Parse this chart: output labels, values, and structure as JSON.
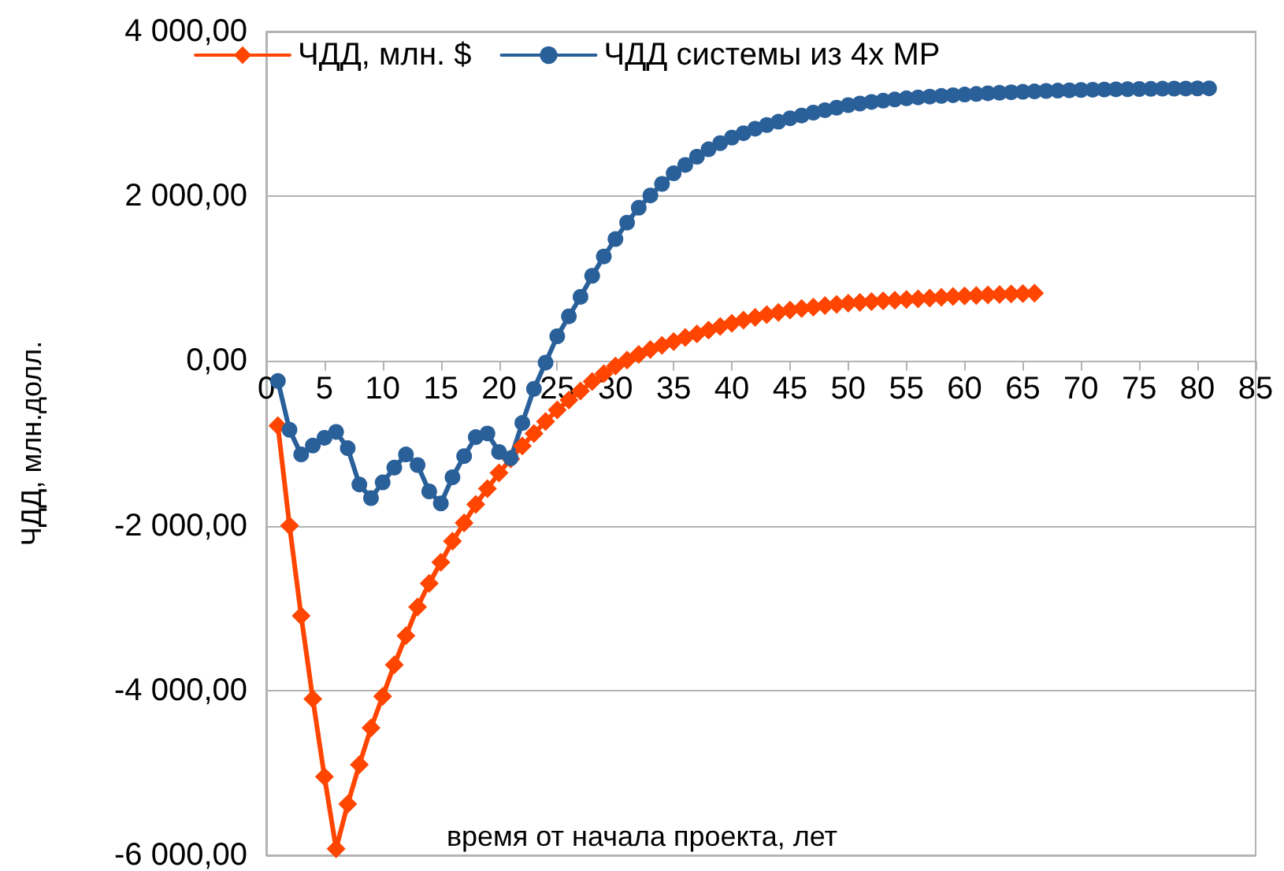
{
  "chart_data": {
    "type": "line",
    "xlabel": "время от начала проекта, лет",
    "ylabel": "ЧДД, млн.долл.",
    "xlim": [
      0,
      85
    ],
    "xticks": [
      0,
      5,
      10,
      15,
      20,
      25,
      30,
      35,
      40,
      45,
      50,
      55,
      60,
      65,
      70,
      75,
      80,
      85
    ],
    "ylim": [
      -6000,
      4000
    ],
    "yticks": [
      {
        "value": -6000,
        "label": "-6 000,00"
      },
      {
        "value": -4000,
        "label": "-4 000,00"
      },
      {
        "value": -2000,
        "label": "-2 000,00"
      },
      {
        "value": 0,
        "label": "0,00"
      },
      {
        "value": 2000,
        "label": "2 000,00"
      },
      {
        "value": 4000,
        "label": "4 000,00"
      }
    ],
    "grid": "y",
    "legend": "top left",
    "line_style": "solid",
    "series": [
      {
        "name": "ЧДД, млн. $",
        "color": "#ff4500",
        "marker": "diamond",
        "x": [
          1,
          2,
          3,
          4,
          5,
          6,
          7,
          8,
          9,
          10,
          11,
          12,
          13,
          14,
          15,
          16,
          17,
          18,
          19,
          20,
          21,
          22,
          23,
          24,
          25,
          26,
          27,
          28,
          29,
          30,
          31,
          32,
          33,
          34,
          35,
          36,
          37,
          38,
          39,
          40,
          41,
          42,
          43,
          44,
          45,
          46,
          47,
          48,
          49,
          50,
          51,
          52,
          53,
          54,
          55,
          56,
          57,
          58,
          59,
          60,
          61,
          62,
          63,
          64,
          65,
          66
        ],
        "values": [
          -785,
          -2000,
          -3094,
          -4102,
          -5047,
          -5920,
          -5378,
          -4900,
          -4454,
          -4071,
          -3688,
          -3336,
          -2986,
          -2699,
          -2444,
          -2188,
          -1966,
          -1742,
          -1550,
          -1359,
          -1190,
          -1030,
          -880,
          -735,
          -593,
          -475,
          -365,
          -250,
          -155,
          -60,
          10,
          80,
          140,
          190,
          235,
          285,
          330,
          375,
          420,
          459,
          495,
          530,
          562,
          590,
          618,
          637,
          655,
          672,
          688,
          702,
          712,
          721,
          730,
          738,
          746,
          755,
          764,
          773,
          782,
          790,
          796,
          802,
          808,
          814,
          819,
          823
        ]
      },
      {
        "name": "ЧДД системы из 4х МР",
        "color": "#2a6099",
        "marker": "circle",
        "x": [
          1,
          2,
          3,
          4,
          5,
          6,
          7,
          8,
          9,
          10,
          11,
          12,
          13,
          14,
          15,
          16,
          17,
          18,
          19,
          20,
          21,
          22,
          23,
          24,
          25,
          26,
          27,
          28,
          29,
          30,
          31,
          32,
          33,
          34,
          35,
          36,
          37,
          38,
          39,
          40,
          41,
          42,
          43,
          44,
          45,
          46,
          47,
          48,
          49,
          50,
          51,
          52,
          53,
          54,
          55,
          56,
          57,
          58,
          59,
          60,
          61,
          62,
          63,
          64,
          65,
          66,
          67,
          68,
          69,
          70,
          71,
          72,
          73,
          74,
          75,
          76,
          77,
          78,
          79,
          80,
          81
        ],
        "values": [
          -243,
          -836,
          -1135,
          -1027,
          -932,
          -861,
          -1058,
          -1499,
          -1665,
          -1474,
          -1295,
          -1135,
          -1263,
          -1583,
          -1729,
          -1411,
          -1155,
          -924,
          -880,
          -1104,
          -1180,
          -752,
          -338,
          -19,
          300,
          542,
          779,
          1034,
          1269,
          1480,
          1680,
          1860,
          2010,
          2150,
          2278,
          2380,
          2480,
          2570,
          2645,
          2712,
          2765,
          2820,
          2865,
          2905,
          2947,
          2980,
          3015,
          3045,
          3075,
          3106,
          3125,
          3145,
          3160,
          3175,
          3189,
          3200,
          3210,
          3218,
          3226,
          3234,
          3242,
          3250,
          3256,
          3262,
          3268,
          3273,
          3278,
          3282,
          3286,
          3290,
          3293,
          3296,
          3298,
          3300,
          3302,
          3304,
          3306,
          3307,
          3308,
          3309,
          3310
        ]
      }
    ]
  }
}
